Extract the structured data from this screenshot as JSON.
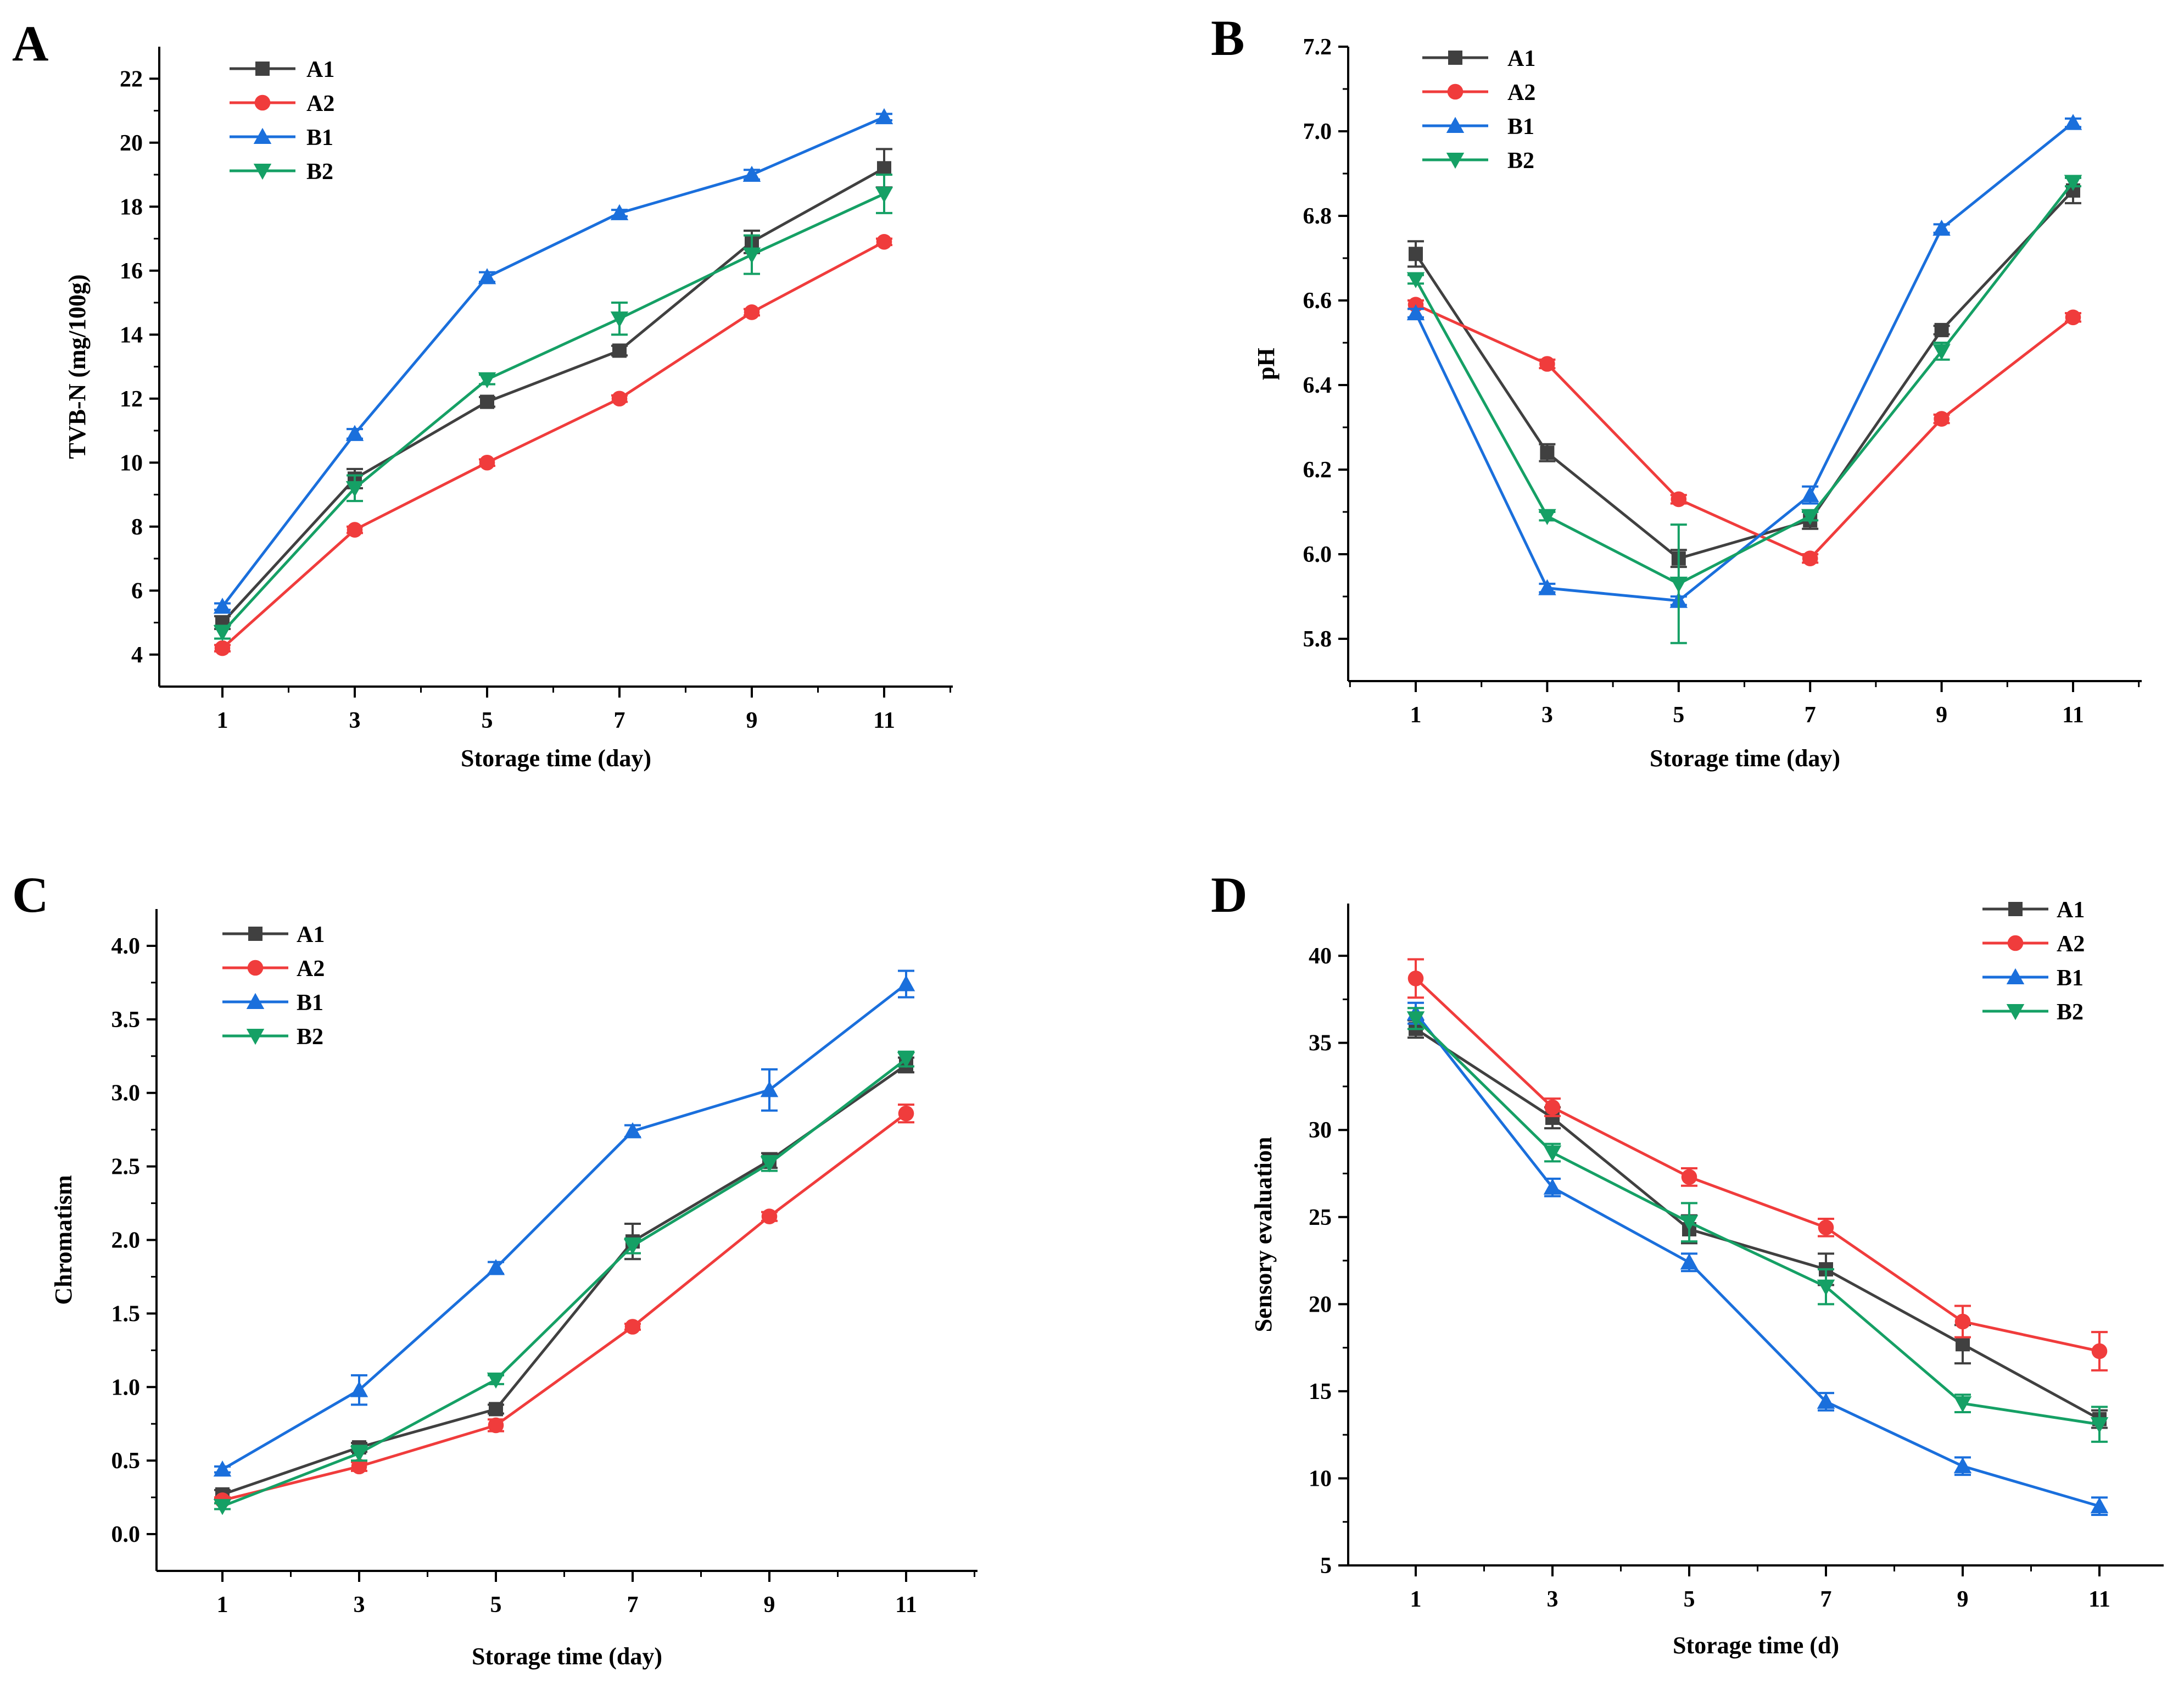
{
  "figure_title": "",
  "colors": {
    "A1": "#404040",
    "A2": "#f03c3c",
    "B1": "#1a6fdc",
    "B2": "#15a065"
  },
  "chart_data": [
    {
      "panel": "A",
      "type": "line",
      "xlabel": "Storage time (day)",
      "ylabel": "TVB-N (mg/100g)",
      "x": [
        1,
        3,
        5,
        7,
        9,
        11
      ],
      "x_tick_labels": [
        "1",
        "3",
        "5",
        "7",
        "9",
        "11"
      ],
      "ylim": [
        3,
        23
      ],
      "yticks": [
        4,
        6,
        8,
        10,
        12,
        14,
        16,
        18,
        20,
        22
      ],
      "y_tick_labels": [
        "4",
        "6",
        "8",
        "10",
        "12",
        "14",
        "16",
        "18",
        "20",
        "22"
      ],
      "legend_position": "top-left",
      "series": [
        {
          "name": "A1",
          "marker": "square",
          "values": [
            5.0,
            9.5,
            11.9,
            13.5,
            16.9,
            19.2
          ],
          "errors": [
            0.2,
            0.3,
            0.15,
            0.15,
            0.35,
            0.6
          ]
        },
        {
          "name": "A2",
          "marker": "circle",
          "values": [
            4.2,
            7.9,
            10.0,
            12.0,
            14.7,
            16.9
          ],
          "errors": [
            0.1,
            0.1,
            0.1,
            0.1,
            0.1,
            0.1
          ]
        },
        {
          "name": "B1",
          "marker": "triangle-up",
          "values": [
            5.5,
            10.9,
            15.8,
            17.8,
            19.0,
            20.8
          ],
          "errors": [
            0.1,
            0.15,
            0.15,
            0.1,
            0.15,
            0.1
          ]
        },
        {
          "name": "B2",
          "marker": "triangle-down",
          "values": [
            4.7,
            9.2,
            12.6,
            14.5,
            16.5,
            18.4
          ],
          "errors": [
            0.2,
            0.4,
            0.15,
            0.5,
            0.6,
            0.6
          ]
        }
      ]
    },
    {
      "panel": "B",
      "type": "line",
      "xlabel": "Storage time (day)",
      "ylabel": "pH",
      "x": [
        1,
        3,
        5,
        7,
        9,
        11
      ],
      "x_tick_labels": [
        "1",
        "3",
        "5",
        "7",
        "9",
        "11"
      ],
      "ylim": [
        5.7,
        7.2
      ],
      "yticks": [
        5.8,
        6.0,
        6.2,
        6.4,
        6.6,
        6.8,
        7.0,
        7.2
      ],
      "y_tick_labels": [
        "5.8",
        "6.0",
        "6.2",
        "6.4",
        "6.6",
        "6.8",
        "7.0",
        "7.2"
      ],
      "legend_position": "top-left",
      "series": [
        {
          "name": "A1",
          "marker": "square",
          "values": [
            6.71,
            6.24,
            5.99,
            6.08,
            6.53,
            6.86
          ],
          "errors": [
            0.03,
            0.02,
            0.02,
            0.02,
            0.01,
            0.03
          ]
        },
        {
          "name": "A2",
          "marker": "circle",
          "values": [
            6.59,
            6.45,
            6.13,
            5.99,
            6.32,
            6.56
          ],
          "errors": [
            0.01,
            0.01,
            0.01,
            0.01,
            0.01,
            0.01
          ]
        },
        {
          "name": "B1",
          "marker": "triangle-up",
          "values": [
            6.57,
            5.92,
            5.89,
            6.14,
            6.77,
            7.02
          ],
          "errors": [
            0.01,
            0.01,
            0.01,
            0.02,
            0.01,
            0.01
          ]
        },
        {
          "name": "B2",
          "marker": "triangle-down",
          "values": [
            6.65,
            6.09,
            5.93,
            6.09,
            6.48,
            6.88
          ],
          "errors": [
            0.01,
            0.01,
            0.14,
            0.01,
            0.02,
            0.01
          ]
        }
      ]
    },
    {
      "panel": "C",
      "type": "line",
      "xlabel": "Storage time (day)",
      "ylabel": "Chromatism",
      "x": [
        1,
        3,
        5,
        7,
        9,
        11
      ],
      "x_tick_labels": [
        "1",
        "3",
        "5",
        "7",
        "9",
        "11"
      ],
      "ylim": [
        -0.25,
        4.25
      ],
      "yticks": [
        0.0,
        0.5,
        1.0,
        1.5,
        2.0,
        2.5,
        3.0,
        3.5,
        4.0
      ],
      "y_tick_labels": [
        "0.0",
        "0.5",
        "1.0",
        "1.5",
        "2.0",
        "2.5",
        "3.0",
        "3.5",
        "4.0"
      ],
      "legend_position": "top-left",
      "series": [
        {
          "name": "A1",
          "marker": "square",
          "values": [
            0.27,
            0.59,
            0.85,
            1.99,
            2.54,
            3.19
          ],
          "errors": [
            0.03,
            0.03,
            0.03,
            0.12,
            0.05,
            0.05
          ]
        },
        {
          "name": "A2",
          "marker": "circle",
          "values": [
            0.23,
            0.46,
            0.74,
            1.41,
            2.16,
            2.86
          ],
          "errors": [
            0.02,
            0.03,
            0.04,
            0.02,
            0.03,
            0.06
          ]
        },
        {
          "name": "B1",
          "marker": "triangle-up",
          "values": [
            0.44,
            0.98,
            1.81,
            2.74,
            3.02,
            3.74
          ],
          "errors": [
            0.02,
            0.1,
            0.04,
            0.04,
            0.14,
            0.09
          ]
        },
        {
          "name": "B2",
          "marker": "triangle-down",
          "values": [
            0.19,
            0.55,
            1.05,
            1.96,
            2.52,
            3.23
          ],
          "errors": [
            0.02,
            0.05,
            0.03,
            0.05,
            0.05,
            0.05
          ]
        }
      ]
    },
    {
      "panel": "D",
      "type": "line",
      "xlabel": "Storage time (d)",
      "ylabel": "Sensory evaluation",
      "x": [
        1,
        3,
        5,
        7,
        9,
        11
      ],
      "x_tick_labels": [
        "1",
        "3",
        "5",
        "7",
        "9",
        "11"
      ],
      "ylim": [
        5,
        43
      ],
      "yticks": [
        5,
        10,
        15,
        20,
        25,
        30,
        35,
        40
      ],
      "y_tick_labels": [
        "5",
        "10",
        "15",
        "20",
        "25",
        "30",
        "35",
        "40"
      ],
      "legend_position": "top-right",
      "series": [
        {
          "name": "A1",
          "marker": "square",
          "values": [
            35.8,
            30.7,
            24.3,
            22.0,
            17.7,
            13.4
          ],
          "errors": [
            0.5,
            0.6,
            0.8,
            0.9,
            1.1,
            0.5
          ]
        },
        {
          "name": "A2",
          "marker": "circle",
          "values": [
            38.7,
            31.3,
            27.3,
            24.4,
            19.0,
            17.3
          ],
          "errors": [
            1.1,
            0.5,
            0.5,
            0.5,
            0.9,
            1.1
          ]
        },
        {
          "name": "B1",
          "marker": "triangle-up",
          "values": [
            36.7,
            26.7,
            22.4,
            14.4,
            10.7,
            8.4
          ],
          "errors": [
            0.6,
            0.5,
            0.5,
            0.5,
            0.5,
            0.5
          ]
        },
        {
          "name": "B2",
          "marker": "triangle-down",
          "values": [
            36.4,
            28.7,
            24.7,
            21.0,
            14.3,
            13.1
          ],
          "errors": [
            0.6,
            0.5,
            1.1,
            1.0,
            0.5,
            1.0
          ]
        }
      ]
    }
  ]
}
